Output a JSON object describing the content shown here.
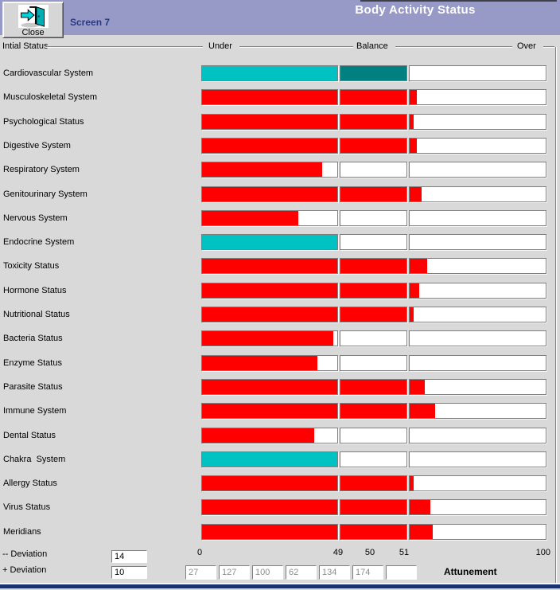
{
  "window": {
    "title": "Body Activity Status",
    "screen_label": "Screen 7",
    "close_label": "Close"
  },
  "scale_header": {
    "left_label": "Intial Status",
    "under": "Under",
    "balance": "Balance",
    "over": "Over"
  },
  "colors": {
    "header_bg": "#9799c7",
    "client_bg": "#d9d9d9",
    "red": "#ff0000",
    "cyan": "#00c2c2",
    "dark_teal": "#008080",
    "navy_strip": "#16336e"
  },
  "rows": [
    {
      "label": "Cardiovascular System",
      "palette": "teal",
      "under": 100,
      "balance": 100,
      "over": 0
    },
    {
      "label": "Musculoskeletal System",
      "palette": "red",
      "under": 100,
      "balance": 100,
      "over": 5
    },
    {
      "label": "Psychological Status",
      "palette": "red",
      "under": 100,
      "balance": 100,
      "over": 3
    },
    {
      "label": "Digestive System",
      "palette": "red",
      "under": 100,
      "balance": 100,
      "over": 5
    },
    {
      "label": "Respiratory System",
      "palette": "red",
      "under": 89,
      "balance": 0,
      "over": 0
    },
    {
      "label": "Genitourinary System",
      "palette": "red",
      "under": 100,
      "balance": 100,
      "over": 9
    },
    {
      "label": "Nervous System",
      "palette": "red",
      "under": 71,
      "balance": 0,
      "over": 0
    },
    {
      "label": "Endocrine System",
      "palette": "teal",
      "under": 100,
      "balance": 0,
      "over": 0
    },
    {
      "label": "Toxicity Status",
      "palette": "red",
      "under": 100,
      "balance": 100,
      "over": 13
    },
    {
      "label": "Hormone Status",
      "palette": "red",
      "under": 100,
      "balance": 100,
      "over": 7
    },
    {
      "label": "Nutritional Status",
      "palette": "red",
      "under": 100,
      "balance": 100,
      "over": 3
    },
    {
      "label": "Bacteria Status",
      "palette": "red",
      "under": 97,
      "balance": 0,
      "over": 0
    },
    {
      "label": "Enzyme Status",
      "palette": "red",
      "under": 85,
      "balance": 0,
      "over": 0
    },
    {
      "label": "Parasite Status",
      "palette": "red",
      "under": 100,
      "balance": 100,
      "over": 11
    },
    {
      "label": "Immune System",
      "palette": "red",
      "under": 100,
      "balance": 100,
      "over": 19
    },
    {
      "label": "Dental Status",
      "palette": "red",
      "under": 83,
      "balance": 0,
      "over": 0
    },
    {
      "label": "Chakra  System",
      "palette": "teal",
      "under": 100,
      "balance": 0,
      "over": 0
    },
    {
      "label": "Allergy Status",
      "palette": "red",
      "under": 100,
      "balance": 100,
      "over": 3
    },
    {
      "label": "Virus Status",
      "palette": "red",
      "under": 100,
      "balance": 100,
      "over": 15
    },
    {
      "label": "Meridians",
      "palette": "red",
      "under": 100,
      "balance": 100,
      "over": 17
    }
  ],
  "axis": {
    "ticks": [
      "0",
      "49",
      "50",
      "51",
      "100"
    ]
  },
  "deviation": {
    "minus_label": "-- Deviation",
    "minus_value": "14",
    "plus_label": "+ Deviation",
    "plus_value": "10"
  },
  "attunement": {
    "label": "Attunement",
    "values": [
      "27",
      "127",
      "100",
      "62",
      "134",
      "174",
      ""
    ]
  }
}
